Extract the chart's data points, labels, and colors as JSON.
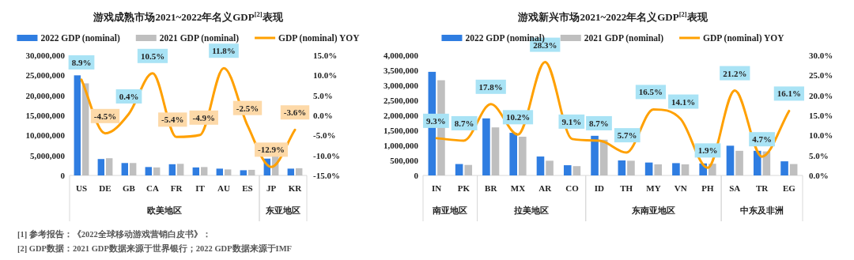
{
  "chart_data": [
    {
      "type": "bar",
      "title": "游戏成熟市场2021~2022年名义GDP$^{[2]}$表现",
      "legend": "top",
      "categories": [
        "US",
        "DE",
        "GB",
        "CA",
        "FR",
        "IT",
        "AU",
        "ES",
        "JP",
        "KR"
      ],
      "series": [
        {
          "name": "2022 GDP (nominal)",
          "color": "#2f7de1",
          "values": [
            25000000,
            4100000,
            3100000,
            2100000,
            2800000,
            2000000,
            1700000,
            1300000,
            4200000,
            1700000
          ]
        },
        {
          "name": "2021 GDP (nominal)",
          "color": "#bfbfbf",
          "values": [
            23000000,
            4300000,
            3100000,
            2000000,
            2900000,
            2100000,
            1500000,
            1400000,
            4900000,
            1800000
          ]
        },
        {
          "name": "GDP (nominal) YOY",
          "type": "line",
          "axis": "y2",
          "color": "#ffa000",
          "values": [
            8.9,
            -4.5,
            0.4,
            10.5,
            -5.4,
            -4.9,
            11.8,
            -2.5,
            -12.9,
            -3.6
          ],
          "value_labels": [
            "8.9%",
            "-4.5%",
            "0.4%",
            "10.5%",
            "-5.4%",
            "-4.9%",
            "11.8%",
            "-2.5%",
            "-12.9%",
            "-3.6%"
          ]
        }
      ],
      "ylim": [
        0,
        30000000
      ],
      "yticks": [
        {
          "value": 0,
          "label": "0"
        },
        {
          "value": 5000000,
          "label": "5,000,000"
        },
        {
          "value": 10000000,
          "label": "10,000,000"
        },
        {
          "value": 15000000,
          "label": "15,000,000"
        },
        {
          "value": 20000000,
          "label": "20,000,000"
        },
        {
          "value": 25000000,
          "label": "25,000,000"
        },
        {
          "value": 30000000,
          "label": "30,000,000"
        }
      ],
      "y2lim": [
        -15,
        15
      ],
      "y2ticks": [
        {
          "value": -15,
          "label": "-15.0%"
        },
        {
          "value": -10,
          "label": "-10.0%"
        },
        {
          "value": -5,
          "label": "-5.0%"
        },
        {
          "value": 0,
          "label": "0.0%"
        },
        {
          "value": 5,
          "label": "5.0%"
        },
        {
          "value": 10,
          "label": "10.0%"
        },
        {
          "value": 15,
          "label": "15.0%"
        }
      ],
      "annotations": [
        "欧美地区",
        "东亚地区",
        "[1] 参考报告：《2022全球移动游戏营销白皮书》：",
        "[2] GDP数据：2021 GDP数据来源于世界银行；2022 GDP数据来源于IMF"
      ]
    },
    {
      "type": "bar",
      "title": "游戏新兴市场2021~2022年名义GDP$^{[2]}$表现",
      "legend": "top",
      "categories": [
        "IN",
        "PK",
        "BR",
        "MX",
        "AR",
        "CO",
        "ID",
        "TH",
        "MY",
        "VN",
        "PH",
        "SA",
        "TR",
        "EG"
      ],
      "series": [
        {
          "name": "2022 GDP (nominal)",
          "color": "#2f7de1",
          "values": [
            3450000,
            380000,
            1900000,
            1420000,
            630000,
            340000,
            1320000,
            500000,
            430000,
            410000,
            400000,
            990000,
            820000,
            470000
          ]
        },
        {
          "name": "2021 GDP (nominal)",
          "color": "#bfbfbf",
          "values": [
            3170000,
            350000,
            1600000,
            1290000,
            490000,
            310000,
            1190000,
            490000,
            370000,
            370000,
            390000,
            820000,
            800000,
            380000
          ]
        },
        {
          "name": "GDP (nominal) YOY",
          "type": "line",
          "axis": "y2",
          "color": "#ffa000",
          "values": [
            9.3,
            8.7,
            17.8,
            10.2,
            28.3,
            9.1,
            8.7,
            5.7,
            16.5,
            14.1,
            1.9,
            21.2,
            4.7,
            16.1
          ],
          "value_labels": [
            "9.3%",
            "8.7%",
            "17.8%",
            "10.2%",
            "28.3%",
            "9.1%",
            "8.7%",
            "5.7%",
            "16.5%",
            "14.1%",
            "1.9%",
            "21.2%",
            "4.7%",
            "16.1%"
          ]
        }
      ],
      "ylim": [
        0,
        4000000
      ],
      "yticks": [
        {
          "value": 0,
          "label": "0"
        },
        {
          "value": 500000,
          "label": "500,000"
        },
        {
          "value": 1000000,
          "label": "1,000,000"
        },
        {
          "value": 1500000,
          "label": "1,500,000"
        },
        {
          "value": 2000000,
          "label": "2,000,000"
        },
        {
          "value": 2500000,
          "label": "2,500,000"
        },
        {
          "value": 3000000,
          "label": "3,000,000"
        },
        {
          "value": 3500000,
          "label": "3,500,000"
        },
        {
          "value": 4000000,
          "label": "4,000,000"
        }
      ],
      "y2lim": [
        0,
        30
      ],
      "y2ticks": [
        {
          "value": 0,
          "label": "0.0%"
        },
        {
          "value": 5,
          "label": "5.0%"
        },
        {
          "value": 10,
          "label": "10.0%"
        },
        {
          "value": 15,
          "label": "15.0%"
        },
        {
          "value": 20,
          "label": "20.0%"
        },
        {
          "value": 25,
          "label": "25.0%"
        },
        {
          "value": 30,
          "label": "30.0%"
        }
      ],
      "annotations": [
        "南亚地区",
        "拉美地区",
        "东南亚地区",
        "中东及非洲"
      ]
    }
  ]
}
